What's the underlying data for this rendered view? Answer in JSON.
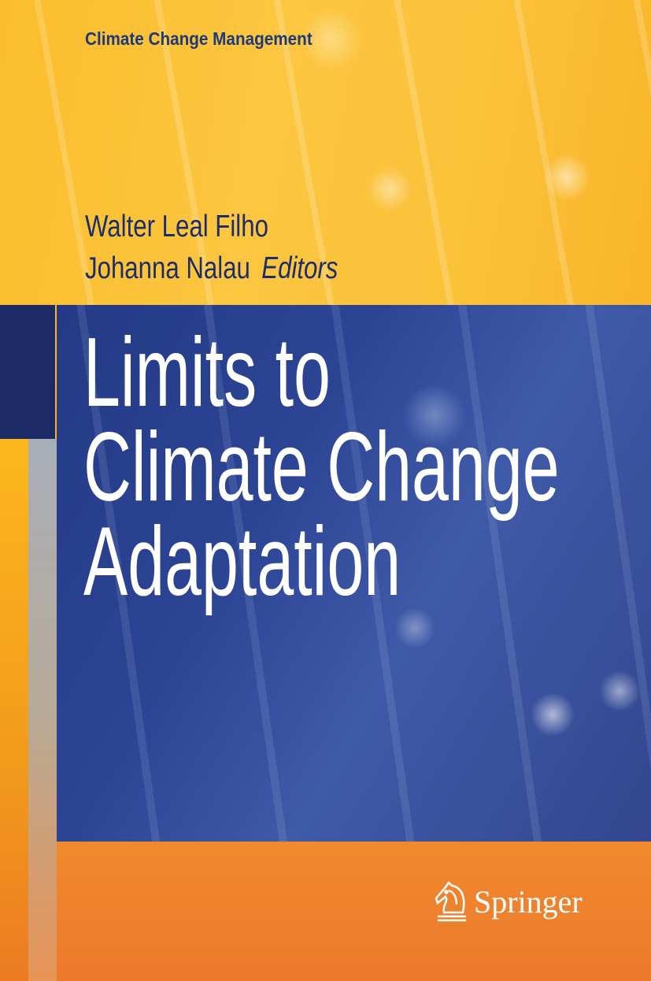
{
  "series": "Climate Change Management",
  "authors": [
    "Walter Leal Filho",
    "Johanna Nalau"
  ],
  "editors_label": "Editors",
  "title_lines": [
    "Limits to",
    "Climate Change",
    "Adaptation"
  ],
  "publisher": {
    "name": "Springer",
    "logo_icon": "knight-horse-icon"
  },
  "colors": {
    "navy": "#1c2b66",
    "blue_panel": "#2c4494",
    "yellow": "#fbbd2c",
    "orange": "#ec7a2c",
    "author_text": "#1b2d6b"
  }
}
